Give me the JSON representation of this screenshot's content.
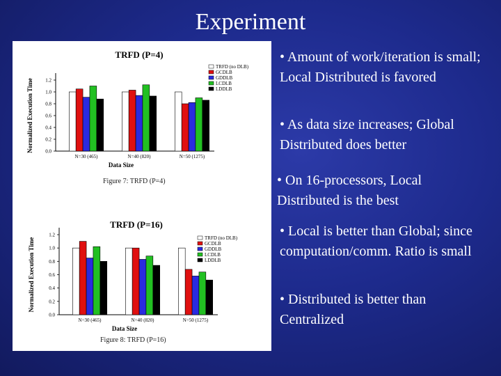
{
  "slide": {
    "title": "Experiment"
  },
  "chart_data": [
    {
      "type": "bar",
      "title": "TRFD (P=4)",
      "xlabel": "Data Size",
      "ylabel": "Normalized Execution Time",
      "caption": "Figure 7: TRFD (P=4)",
      "ylim": [
        0,
        1.2
      ],
      "yticks": [
        "0.0",
        "0.2",
        "0.4",
        "0.6",
        "0.8",
        "1.0",
        "1.2"
      ],
      "categories": [
        "N=30 (465)",
        "N=40 (820)",
        "N=50 (1275)"
      ],
      "series": [
        {
          "name": "TRFD (no DLB)",
          "color": "#ffffff",
          "values": [
            1.0,
            1.0,
            1.0
          ]
        },
        {
          "name": "GCDLB",
          "color": "#e01010",
          "values": [
            1.05,
            1.03,
            0.8
          ]
        },
        {
          "name": "GDDLB",
          "color": "#2a2ae0",
          "values": [
            0.91,
            0.94,
            0.82
          ]
        },
        {
          "name": "LCDLB",
          "color": "#22c022",
          "values": [
            1.1,
            1.12,
            0.9
          ]
        },
        {
          "name": "LDDLB",
          "color": "#000000",
          "values": [
            0.88,
            0.93,
            0.86
          ]
        }
      ],
      "legend": "top-right",
      "grid": false
    },
    {
      "type": "bar",
      "title": "TRFD (P=16)",
      "xlabel": "Data Size",
      "ylabel": "Normalized Execution Time",
      "caption": "Figure 8: TRFD (P=16)",
      "ylim": [
        0,
        1.2
      ],
      "yticks": [
        "0.0",
        "0.2",
        "0.4",
        "0.6",
        "0.8",
        "1.0",
        "1.2"
      ],
      "categories": [
        "N=30 (465)",
        "N=40 (820)",
        "N=50 (1275)"
      ],
      "series": [
        {
          "name": "TRFD (no DLB)",
          "color": "#ffffff",
          "values": [
            1.0,
            1.0,
            1.0
          ]
        },
        {
          "name": "GCDLB",
          "color": "#e01010",
          "values": [
            1.1,
            1.0,
            0.68
          ]
        },
        {
          "name": "GDDLB",
          "color": "#2a2ae0",
          "values": [
            0.85,
            0.83,
            0.58
          ]
        },
        {
          "name": "LCDLB",
          "color": "#22c022",
          "values": [
            1.02,
            0.88,
            0.64
          ]
        },
        {
          "name": "LDDLB",
          "color": "#000000",
          "values": [
            0.8,
            0.74,
            0.52
          ]
        }
      ],
      "legend": "top-right",
      "grid": false
    }
  ],
  "bullets": [
    "• Amount of work/iteration is small; Local Distributed is favored",
    "• As data size increases; Global Distributed does better",
    "• On 16-processors, Local Distributed is the best",
    "• Local is better than Global; since computation/comm. Ratio is small",
    "• Distributed is better than Centralized"
  ]
}
